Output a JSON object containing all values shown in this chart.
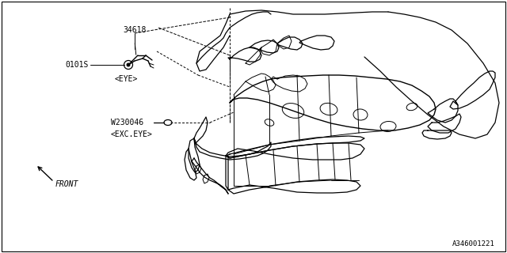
{
  "background_color": "#ffffff",
  "border_color": "#000000",
  "diagram_id": "A346001221",
  "labels": {
    "part_number_1": "34618",
    "part_number_2": "0101S",
    "part_number_3": "W230046",
    "label_eye": "<EYE>",
    "label_exc_eye": "<EXC.EYE>",
    "label_front": "FRONT",
    "diagram_ref": "A346001221"
  },
  "text_color": "#000000",
  "line_color": "#000000",
  "line_width": 0.7
}
